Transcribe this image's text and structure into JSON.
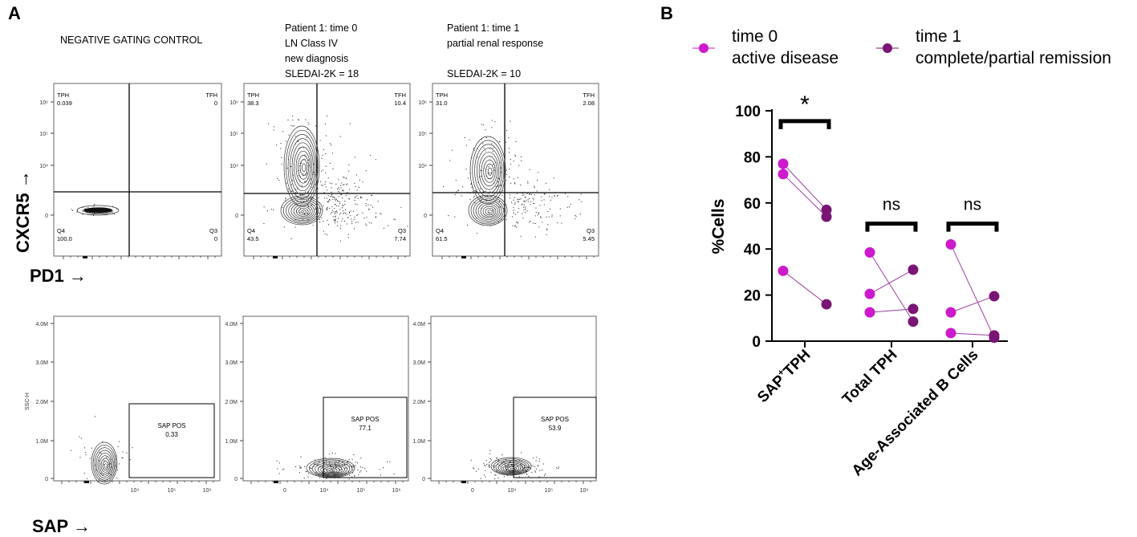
{
  "panel_a": {
    "label": "A",
    "y_axis_label": "CXCR5 →",
    "x_axis_label_pd1": "PD1 →",
    "x_axis_label_sap": "SAP →",
    "columns": [
      {
        "header": [
          "NEGATIVE GATING CONTROL"
        ]
      },
      {
        "header": [
          "Patient 1: time 0",
          "LN Class IV",
          "new diagnosis",
          "SLEDAI-2K = 18"
        ]
      },
      {
        "header": [
          "Patient 1: time 1",
          "partial renal response",
          "",
          "SLEDAI-2K  = 10"
        ]
      }
    ],
    "pd1_plots": [
      {
        "tph_label": "TPH",
        "tph_value": "0.039",
        "tfh_label": "TFH",
        "tfh_value": "0",
        "q4_label": "Q4",
        "q4_value": "100.0",
        "q3_label": "Q3",
        "q3_value": "0"
      },
      {
        "tph_label": "TPH",
        "tph_value": "38.3",
        "tfh_label": "TFH",
        "tfh_value": "10.4",
        "q4_label": "Q4",
        "q4_value": "43.5",
        "q3_label": "Q3",
        "q3_value": "7.74"
      },
      {
        "tph_label": "TPH",
        "tph_value": "31.0",
        "tfh_label": "TFH",
        "tfh_value": "2.08",
        "q4_label": "Q4",
        "q4_value": "61.5",
        "q3_label": "Q3",
        "q3_value": "5.45"
      }
    ],
    "pd1_y_ticks": [
      "10⁶",
      "10⁵",
      "10⁴",
      "0"
    ],
    "sap_plots": [
      {
        "gate_label": "SAP POS",
        "gate_value": "0.33"
      },
      {
        "gate_label": "SAP POS",
        "gate_value": "77.1"
      },
      {
        "gate_label": "SAP POS",
        "gate_value": "53.9"
      }
    ],
    "sap_y_axis_label": "SSC-H",
    "sap_y_ticks": [
      "4.0M",
      "3.0M",
      "2.0M",
      "1.0M",
      "0"
    ],
    "sap_x_ticks": [
      "0",
      "10⁴",
      "10⁵",
      "10⁶"
    ]
  },
  "chart_data": {
    "type": "scatter",
    "panel_label": "B",
    "ylabel": "%Cells",
    "ylim": [
      0,
      100
    ],
    "yticks": [
      0,
      20,
      40,
      60,
      80,
      100
    ],
    "categories": [
      "SAP⁺TPH",
      "Total TPH",
      "Age-Associated B Cells"
    ],
    "category_parts": [
      [
        "SAP",
        "+",
        "TPH"
      ],
      [
        "Total TPH"
      ],
      [
        "Age-Associated B Cells"
      ]
    ],
    "legend": [
      {
        "name_lines": [
          "time 0",
          "active disease"
        ],
        "color": "#cc1acc"
      },
      {
        "name_lines": [
          "time 1",
          "complete/partial remission"
        ],
        "color": "#7a1475"
      }
    ],
    "series_colors": {
      "time0": "#cc1acc",
      "time1": "#7a1475",
      "line": "#9b3ea0"
    },
    "paired_points": [
      {
        "category": 0,
        "time0": 77,
        "time1": 57
      },
      {
        "category": 0,
        "time0": 72.5,
        "time1": 54
      },
      {
        "category": 0,
        "time0": 30.5,
        "time1": 16
      },
      {
        "category": 1,
        "time0": 38.5,
        "time1": 8.5
      },
      {
        "category": 1,
        "time0": 20.5,
        "time1": 31
      },
      {
        "category": 1,
        "time0": 12.5,
        "time1": 14
      },
      {
        "category": 2,
        "time0": 42,
        "time1": 1.5
      },
      {
        "category": 2,
        "time0": 12.5,
        "time1": 19.5
      },
      {
        "category": 2,
        "time0": 3.5,
        "time1": 2.5
      }
    ],
    "significance": [
      {
        "category": 0,
        "label": "*"
      },
      {
        "category": 1,
        "label": "ns"
      },
      {
        "category": 2,
        "label": "ns"
      }
    ]
  }
}
